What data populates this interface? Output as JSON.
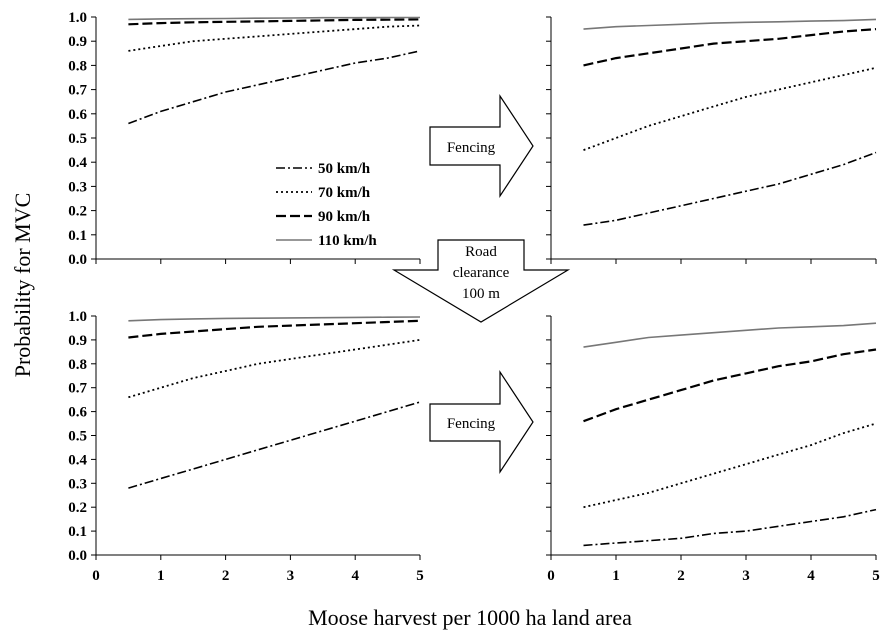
{
  "chart_data": {
    "type": "line",
    "ylabel": "Probability for MVC",
    "xlabel": "Moose harvest per 1000 ha land area",
    "x_ticks": [
      0,
      1,
      2,
      3,
      4,
      5
    ],
    "y_ticks": [
      "0.0",
      "0.1",
      "0.2",
      "0.3",
      "0.4",
      "0.5",
      "0.6",
      "0.7",
      "0.8",
      "0.9",
      "1.0"
    ],
    "xlim": [
      0,
      5
    ],
    "ylim": [
      0,
      1
    ],
    "legend": {
      "placement": "inside top-left panel",
      "entries": [
        "50 km/h",
        "70 km/h",
        "90 km/h",
        "110 km/h"
      ]
    },
    "series_styles": [
      {
        "name": "50 km/h",
        "dash": "dash-dot",
        "color": "#000000"
      },
      {
        "name": "70 km/h",
        "dash": "dotted",
        "color": "#000000"
      },
      {
        "name": "90 km/h",
        "dash": "dashed",
        "color": "#000000"
      },
      {
        "name": "110 km/h",
        "dash": "solid",
        "color": "#777777"
      }
    ],
    "x": [
      0.5,
      1.0,
      1.5,
      2.0,
      2.5,
      3.0,
      3.5,
      4.0,
      4.5,
      5.0
    ],
    "panels": [
      {
        "id": "top-left",
        "series": [
          {
            "name": "50 km/h",
            "values": [
              0.56,
              0.61,
              0.65,
              0.69,
              0.72,
              0.75,
              0.78,
              0.81,
              0.83,
              0.86
            ]
          },
          {
            "name": "70 km/h",
            "values": [
              0.86,
              0.88,
              0.9,
              0.91,
              0.92,
              0.93,
              0.94,
              0.95,
              0.96,
              0.965
            ]
          },
          {
            "name": "90 km/h",
            "values": [
              0.97,
              0.975,
              0.978,
              0.98,
              0.982,
              0.984,
              0.986,
              0.988,
              0.989,
              0.99
            ]
          },
          {
            "name": "110 km/h",
            "values": [
              0.99,
              0.992,
              0.993,
              0.994,
              0.995,
              0.996,
              0.997,
              0.997,
              0.998,
              0.998
            ]
          }
        ]
      },
      {
        "id": "top-right",
        "series": [
          {
            "name": "50 km/h",
            "values": [
              0.14,
              0.16,
              0.19,
              0.22,
              0.25,
              0.28,
              0.31,
              0.35,
              0.39,
              0.44
            ]
          },
          {
            "name": "70 km/h",
            "values": [
              0.45,
              0.5,
              0.55,
              0.59,
              0.63,
              0.67,
              0.7,
              0.73,
              0.76,
              0.79
            ]
          },
          {
            "name": "90 km/h",
            "values": [
              0.8,
              0.83,
              0.85,
              0.87,
              0.89,
              0.9,
              0.91,
              0.925,
              0.94,
              0.95
            ]
          },
          {
            "name": "110 km/h",
            "values": [
              0.95,
              0.96,
              0.965,
              0.97,
              0.975,
              0.978,
              0.98,
              0.983,
              0.985,
              0.99
            ]
          }
        ]
      },
      {
        "id": "bottom-left",
        "series": [
          {
            "name": "50 km/h",
            "values": [
              0.28,
              0.32,
              0.36,
              0.4,
              0.44,
              0.48,
              0.52,
              0.56,
              0.6,
              0.64
            ]
          },
          {
            "name": "70 km/h",
            "values": [
              0.66,
              0.7,
              0.74,
              0.77,
              0.8,
              0.82,
              0.84,
              0.86,
              0.88,
              0.9
            ]
          },
          {
            "name": "90 km/h",
            "values": [
              0.91,
              0.925,
              0.935,
              0.945,
              0.955,
              0.96,
              0.965,
              0.97,
              0.975,
              0.98
            ]
          },
          {
            "name": "110 km/h",
            "values": [
              0.98,
              0.985,
              0.988,
              0.99,
              0.991,
              0.992,
              0.993,
              0.994,
              0.995,
              0.996
            ]
          }
        ]
      },
      {
        "id": "bottom-right",
        "series": [
          {
            "name": "50 km/h",
            "values": [
              0.04,
              0.05,
              0.06,
              0.07,
              0.09,
              0.1,
              0.12,
              0.14,
              0.16,
              0.19
            ]
          },
          {
            "name": "70 km/h",
            "values": [
              0.2,
              0.23,
              0.26,
              0.3,
              0.34,
              0.38,
              0.42,
              0.46,
              0.51,
              0.55
            ]
          },
          {
            "name": "90 km/h",
            "values": [
              0.56,
              0.61,
              0.65,
              0.69,
              0.73,
              0.76,
              0.79,
              0.81,
              0.84,
              0.86
            ]
          },
          {
            "name": "110 km/h",
            "values": [
              0.87,
              0.89,
              0.91,
              0.92,
              0.93,
              0.94,
              0.95,
              0.955,
              0.96,
              0.97
            ]
          }
        ]
      }
    ]
  },
  "arrows": {
    "fencing_top": "Fencing",
    "fencing_bottom": "Fencing",
    "road_clearance": [
      "Road",
      "clearance",
      "100 m"
    ]
  }
}
